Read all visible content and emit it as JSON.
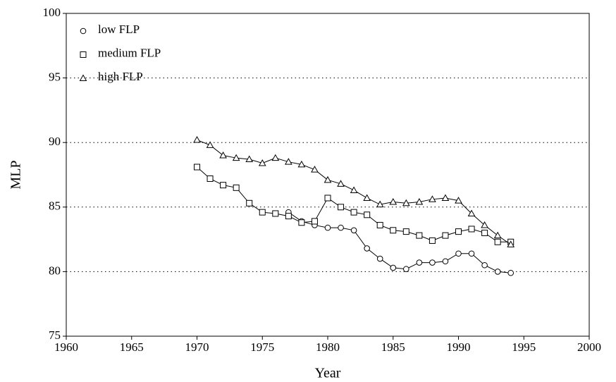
{
  "chart_data": {
    "type": "line",
    "x_label": "Year",
    "y_label": "MLP",
    "x": [
      1970,
      1971,
      1972,
      1973,
      1974,
      1975,
      1976,
      1977,
      1978,
      1979,
      1980,
      1981,
      1982,
      1983,
      1984,
      1985,
      1986,
      1987,
      1988,
      1989,
      1990,
      1991,
      1992,
      1993,
      1994
    ],
    "series": [
      {
        "name": "low FLP",
        "color": "#000000",
        "marker": "circle",
        "values": [
          null,
          null,
          null,
          null,
          null,
          null,
          null,
          84.6,
          83.9,
          83.6,
          83.4,
          83.4,
          83.2,
          81.8,
          81.0,
          80.3,
          80.2,
          80.7,
          80.7,
          80.8,
          81.4,
          81.4,
          80.5,
          80.0,
          79.9
        ]
      },
      {
        "name": "medium FLP",
        "color": "#000000",
        "marker": "square",
        "values": [
          88.1,
          87.2,
          86.7,
          86.5,
          85.3,
          84.6,
          84.5,
          84.3,
          83.8,
          83.9,
          85.7,
          85.0,
          84.6,
          84.4,
          83.6,
          83.2,
          83.1,
          82.8,
          82.4,
          82.8,
          83.1,
          83.3,
          83.0,
          82.3,
          82.3
        ]
      },
      {
        "name": "high FLP",
        "color": "#000000",
        "marker": "triangle",
        "values": [
          90.2,
          89.8,
          89.0,
          88.8,
          88.7,
          88.4,
          88.8,
          88.5,
          88.3,
          87.9,
          87.1,
          86.8,
          86.3,
          85.7,
          85.2,
          85.4,
          85.3,
          85.4,
          85.6,
          85.7,
          85.5,
          84.5,
          83.6,
          82.8,
          82.1
        ]
      }
    ],
    "xlim": [
      1960,
      2000
    ],
    "xticks": [
      1960,
      1965,
      1970,
      1975,
      1980,
      1985,
      1990,
      1995,
      2000
    ],
    "ylim": [
      75,
      100
    ],
    "yticks": [
      75,
      80,
      85,
      90,
      95,
      100
    ],
    "grid": true,
    "legend": "upper left"
  }
}
